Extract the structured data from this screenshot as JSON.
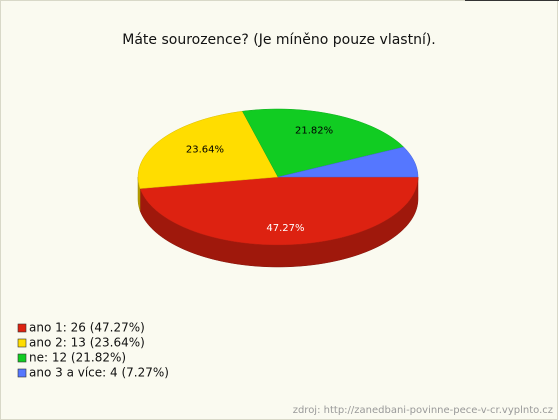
{
  "chart_data": {
    "type": "pie3d",
    "title": "Máte sourozence? (Je míněno pouze vlastní).",
    "categories": [
      "ano 1",
      "ano 2",
      "ne",
      "ano 3 a více"
    ],
    "values": [
      47.27,
      23.64,
      21.82,
      7.27
    ],
    "value_labels": [
      "47.27%",
      "23.64%",
      "21.82%",
      null
    ],
    "colors": [
      "#dd2211",
      "#ffdd00",
      "#11cc22",
      "#5577ff"
    ],
    "legend": [
      "ano 1: 26 (47.27%)",
      "ano 2: 13 (23.64%)",
      "ne: 12 (21.82%)",
      "ano 3 a více: 4 (7.27%)"
    ],
    "source": "zdroj: http://zanedbani-povinne-pece-v-cr.vyplnto.cz"
  }
}
